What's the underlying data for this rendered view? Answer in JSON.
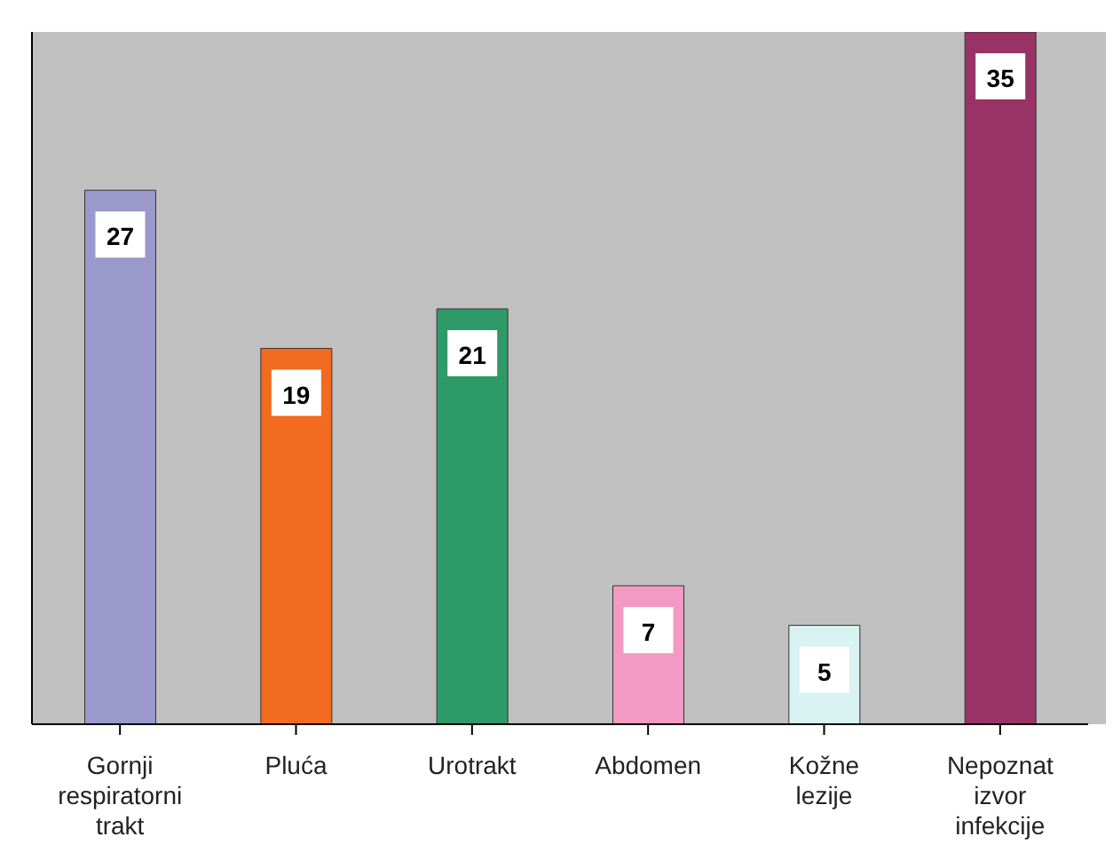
{
  "chart_data": {
    "type": "bar",
    "categories": [
      "Gornji respiratorni trakt",
      "Pluća",
      "Urotrakt",
      "Abdomen",
      "Kožne lezije",
      "Nepoznat izvor infekcije"
    ],
    "values": [
      27,
      19,
      21,
      7,
      5,
      35
    ],
    "colors": [
      "#9999cc",
      "#f26b21",
      "#2e9a67",
      "#f29ac4",
      "#d9f2f2",
      "#993366"
    ],
    "ylim": [
      0,
      35
    ],
    "tick_labels": "x",
    "data_labels": true
  }
}
